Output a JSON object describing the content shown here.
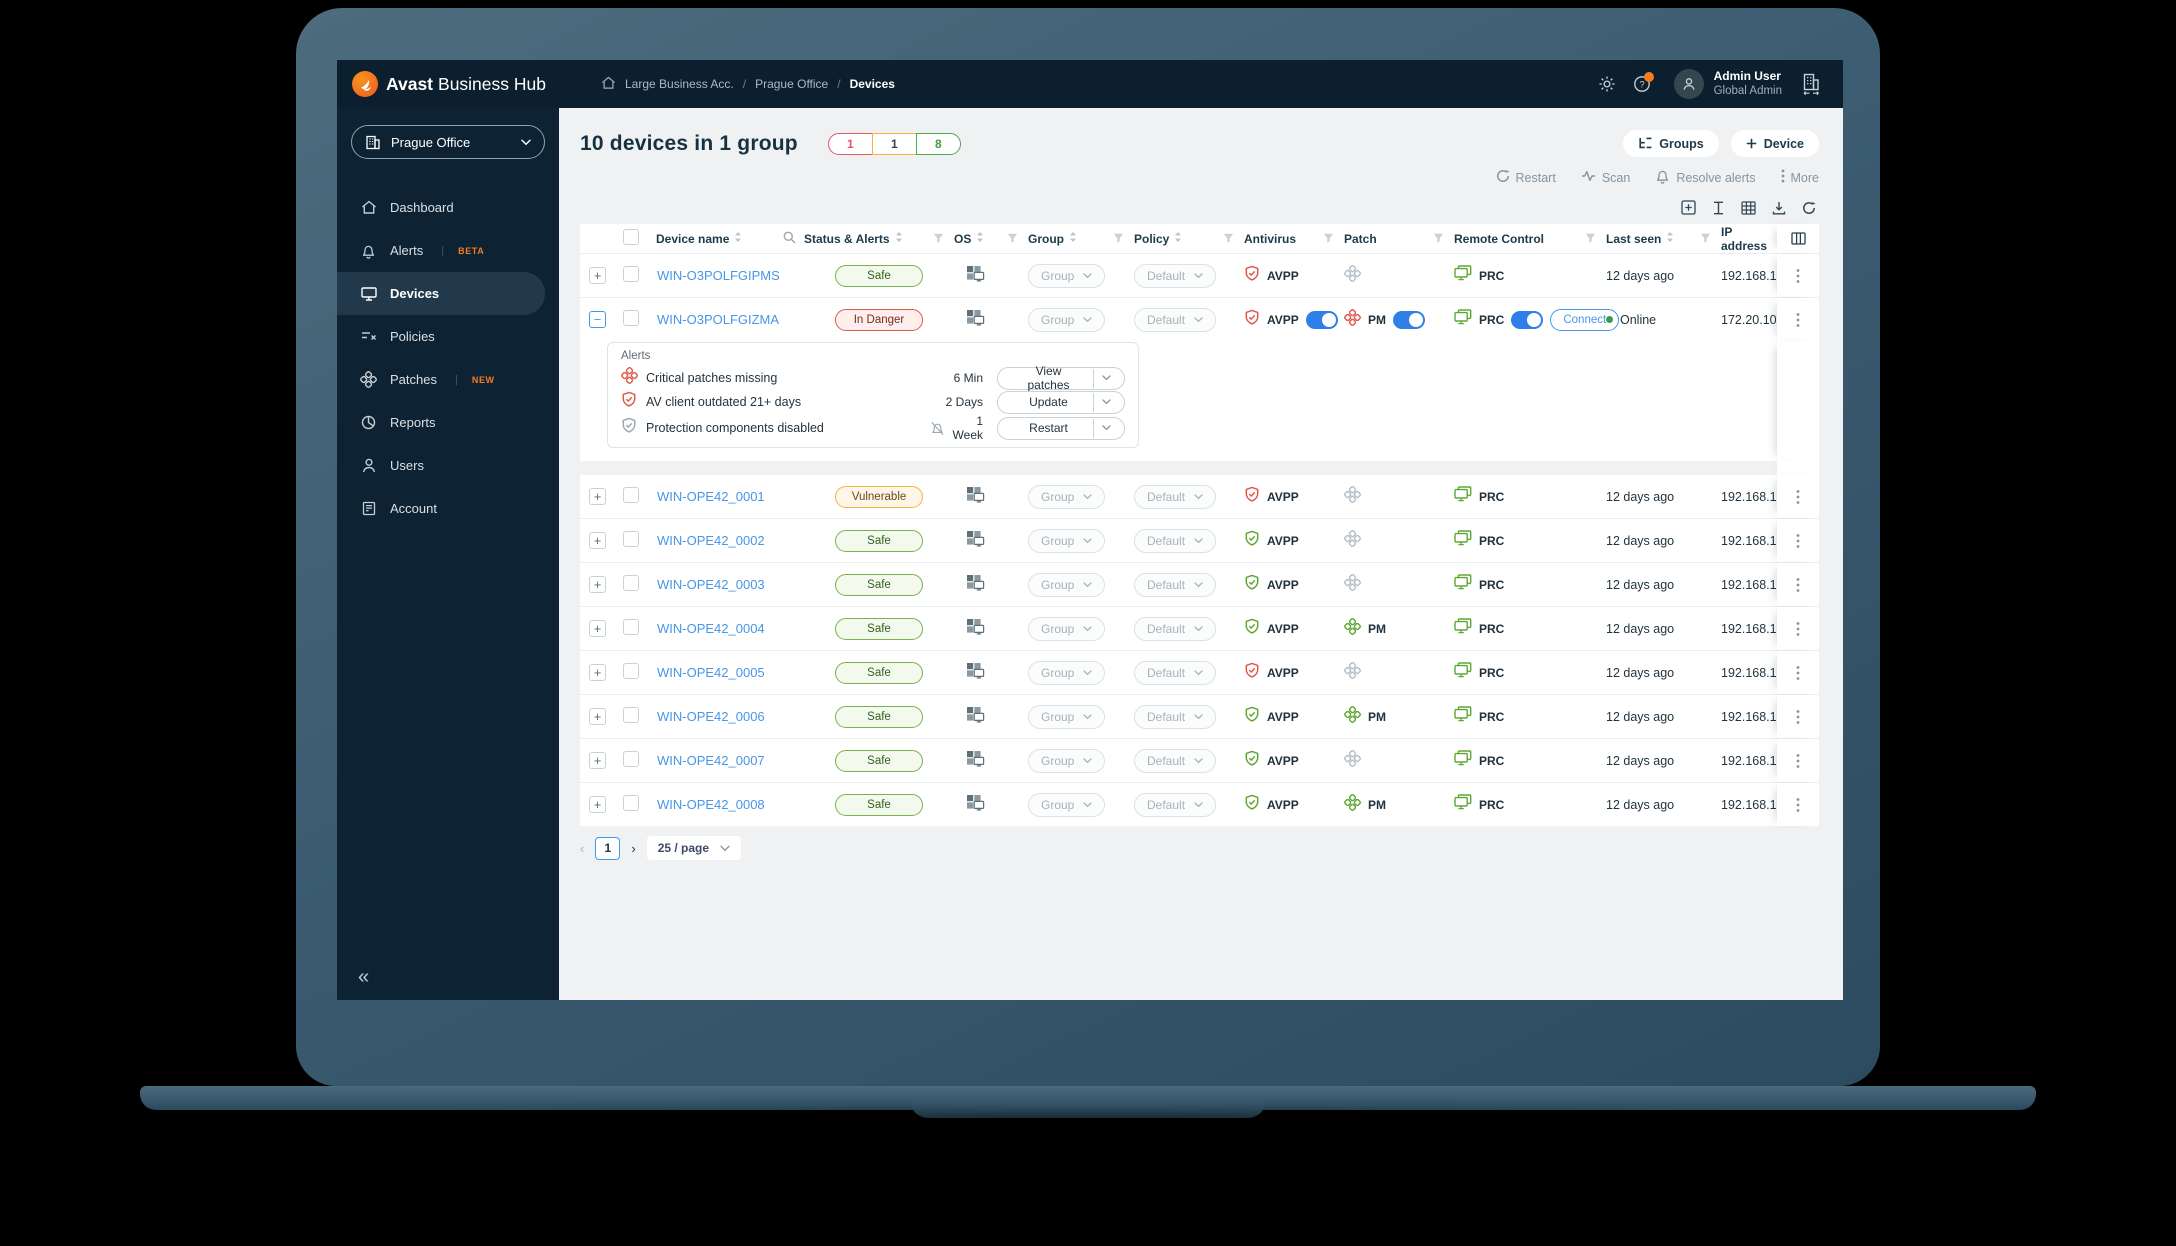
{
  "topbar": {
    "brand_bold": "Avast",
    "brand_light": "Business Hub",
    "breadcrumb": [
      "Large Business Acc.",
      "Prague Office",
      "Devices"
    ],
    "icons": [
      "gear-icon",
      "help-icon",
      "org-switch-icon"
    ],
    "user_name": "Admin User",
    "user_role": "Global Admin"
  },
  "sidebar": {
    "selector": "Prague Office",
    "items": [
      {
        "label": "Dashboard",
        "icon": "home"
      },
      {
        "label": "Alerts",
        "icon": "bell",
        "badge": "BETA"
      },
      {
        "label": "Devices",
        "icon": "monitor",
        "active": true
      },
      {
        "label": "Policies",
        "icon": "policies"
      },
      {
        "label": "Patches",
        "icon": "patch",
        "badge": "NEW"
      },
      {
        "label": "Reports",
        "icon": "reports"
      },
      {
        "label": "Users",
        "icon": "users"
      },
      {
        "label": "Account",
        "icon": "account"
      }
    ],
    "collapse_glyph": "«"
  },
  "header": {
    "title": "10 devices in 1 group",
    "counts": [
      {
        "value": "1",
        "type": "danger"
      },
      {
        "value": "1",
        "type": "warn"
      },
      {
        "value": "8",
        "type": "safe"
      }
    ],
    "groups_button": "Groups",
    "device_button": "Device",
    "actions": [
      {
        "label": "Restart",
        "icon": "refresh"
      },
      {
        "label": "Scan",
        "icon": "scan"
      },
      {
        "label": "Resolve alerts",
        "icon": "bell"
      },
      {
        "label": "More",
        "icon": "more"
      }
    ],
    "tools": [
      "expand-all",
      "resize-columns",
      "table-view",
      "export-download",
      "refresh"
    ]
  },
  "table": {
    "columns": [
      {
        "label": "Device name",
        "sort": true,
        "search": true
      },
      {
        "label": "Status & Alerts",
        "sort": true,
        "filter": true
      },
      {
        "label": "OS",
        "sort": true,
        "filter": true
      },
      {
        "label": "Group",
        "sort": true,
        "filter": true
      },
      {
        "label": "Policy",
        "sort": true,
        "filter": true
      },
      {
        "label": "Antivirus",
        "filter": true
      },
      {
        "label": "Patch",
        "filter": true
      },
      {
        "label": "Remote Control",
        "filter": true
      },
      {
        "label": "Last seen",
        "sort": true,
        "filter": true
      },
      {
        "label": "IP address"
      }
    ],
    "group_dropdown": "Group",
    "policy_dropdown": "Default",
    "av_label": "AVPP",
    "patch_label": "PM",
    "rc_label": "PRC",
    "connect_label": "Connect",
    "rows": [
      {
        "name": "WIN-O3POLFGIPMS",
        "status": "Safe",
        "status_type": "safe",
        "av_state": "red",
        "patch_state": "gray",
        "patch_text": "",
        "last_seen": "12 days ago",
        "ip": "192.168.1"
      },
      {
        "name": "WIN-O3POLFGIZMA",
        "status": "In Danger",
        "status_type": "danger",
        "av_state": "red",
        "av_toggle": true,
        "patch_state": "red",
        "patch_text": "PM",
        "patch_toggle": true,
        "rc_toggle": true,
        "connect": true,
        "online": "Online",
        "ip": "172.20.10",
        "expanded": true
      },
      {
        "name": "WIN-OPE42_0001",
        "status": "Vulnerable",
        "status_type": "warn",
        "av_state": "red",
        "patch_state": "gray",
        "patch_text": "",
        "last_seen": "12 days ago",
        "ip": "192.168.1"
      },
      {
        "name": "WIN-OPE42_0002",
        "status": "Safe",
        "status_type": "safe",
        "av_state": "green",
        "patch_state": "gray",
        "patch_text": "",
        "last_seen": "12 days ago",
        "ip": "192.168.1"
      },
      {
        "name": "WIN-OPE42_0003",
        "status": "Safe",
        "status_type": "safe",
        "av_state": "green",
        "patch_state": "gray",
        "patch_text": "",
        "last_seen": "12 days ago",
        "ip": "192.168.1"
      },
      {
        "name": "WIN-OPE42_0004",
        "status": "Safe",
        "status_type": "safe",
        "av_state": "green",
        "patch_state": "green",
        "patch_text": "PM",
        "last_seen": "12 days ago",
        "ip": "192.168.1"
      },
      {
        "name": "WIN-OPE42_0005",
        "status": "Safe",
        "status_type": "safe",
        "av_state": "red",
        "patch_state": "gray",
        "patch_text": "",
        "last_seen": "12 days ago",
        "ip": "192.168.1"
      },
      {
        "name": "WIN-OPE42_0006",
        "status": "Safe",
        "status_type": "safe",
        "av_state": "green",
        "patch_state": "green",
        "patch_text": "PM",
        "last_seen": "12 days ago",
        "ip": "192.168.1"
      },
      {
        "name": "WIN-OPE42_0007",
        "status": "Safe",
        "status_type": "safe",
        "av_state": "green",
        "patch_state": "gray",
        "patch_text": "",
        "last_seen": "12 days ago",
        "ip": "192.168.1"
      },
      {
        "name": "WIN-OPE42_0008",
        "status": "Safe",
        "status_type": "safe",
        "av_state": "green",
        "patch_state": "green",
        "patch_text": "PM",
        "last_seen": "12 days ago",
        "ip": "192.168.1"
      }
    ],
    "alerts_panel": {
      "title": "Alerts",
      "items": [
        {
          "icon": "patch-red",
          "text": "Critical patches missing",
          "time": "6 Min",
          "action": "View patches"
        },
        {
          "icon": "shield-red",
          "text": "AV client outdated 21+ days",
          "time": "2 Days",
          "action": "Update"
        },
        {
          "icon": "shield-gray",
          "text": "Protection components disabled",
          "muted": true,
          "time": "1 Week",
          "action": "Restart"
        }
      ]
    }
  },
  "pagination": {
    "page": "1",
    "per_page": "25 / page"
  },
  "colors": {
    "brand_orange": "#F05A22",
    "badge_orange": "#F57C1F",
    "link_blue": "#4796E8",
    "toggle_blue": "#2F7FE8",
    "green": "#5FA734",
    "red": "#E2574C",
    "amber": "#F2B43C",
    "navy": "#0C2231"
  }
}
